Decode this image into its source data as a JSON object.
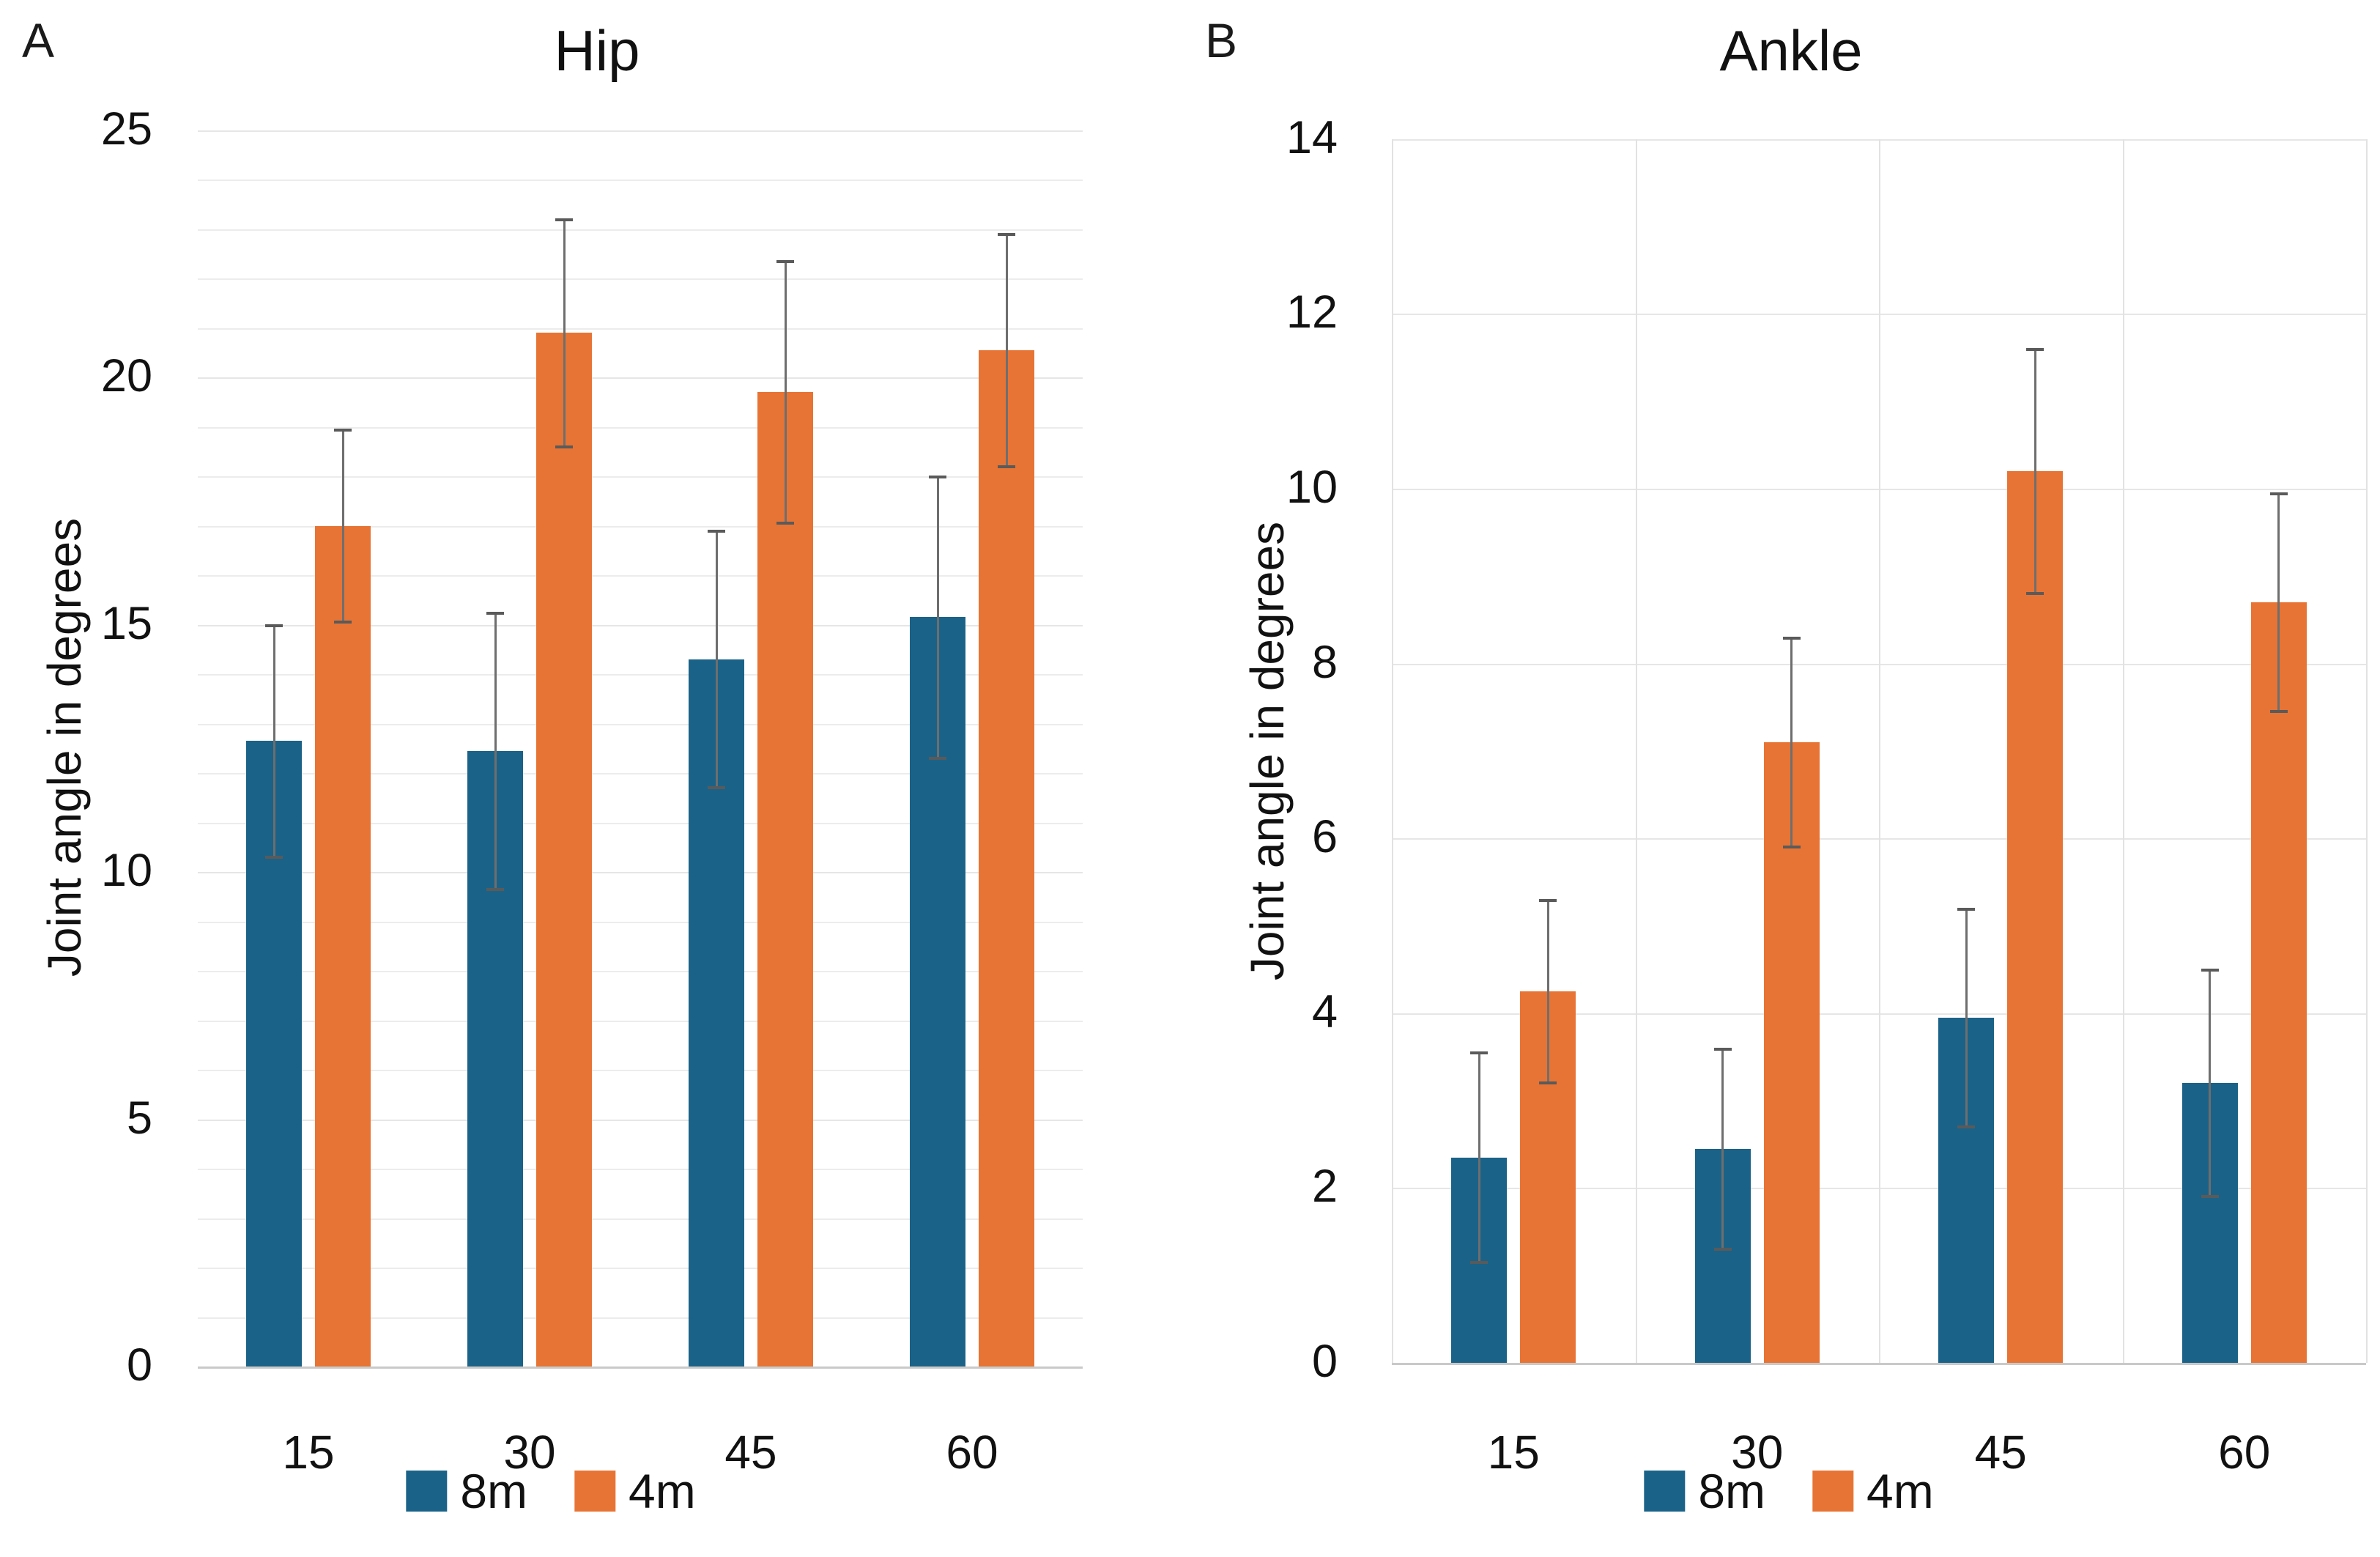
{
  "figure": {
    "background": "#ffffff",
    "series_colors": {
      "8m": "#1a6288",
      "4m": "#e77434"
    },
    "error_bar_color": "#6e6e6e"
  },
  "chart_data": [
    {
      "panel_label": "A",
      "type": "bar",
      "title": "Hip",
      "ylabel": "Joint angle in degrees",
      "xlabel": "",
      "categories": [
        "15",
        "30",
        "45",
        "60"
      ],
      "ylim": [
        0,
        25
      ],
      "ytick_step": 5,
      "grid_step": 1,
      "vertical_group_lines": false,
      "legend_position": "bottom",
      "series": [
        {
          "name": "8m",
          "color": "#1a6288",
          "values": [
            12.65,
            12.45,
            14.3,
            15.15
          ],
          "errors": [
            2.35,
            2.8,
            2.6,
            2.85
          ]
        },
        {
          "name": "4m",
          "color": "#e77434",
          "values": [
            17.0,
            20.9,
            19.7,
            20.55
          ],
          "errors": [
            1.95,
            2.3,
            2.65,
            2.35
          ]
        }
      ]
    },
    {
      "panel_label": "B",
      "type": "bar",
      "title": "Ankle",
      "ylabel": "Joint angle in degrees",
      "xlabel": "",
      "categories": [
        "15",
        "30",
        "45",
        "60"
      ],
      "ylim": [
        0,
        14
      ],
      "ytick_step": 2,
      "grid_step": 2,
      "vertical_group_lines": true,
      "legend_position": "bottom",
      "series": [
        {
          "name": "8m",
          "color": "#1a6288",
          "values": [
            2.35,
            2.45,
            3.95,
            3.2
          ],
          "errors": [
            1.2,
            1.15,
            1.25,
            1.3
          ]
        },
        {
          "name": "4m",
          "color": "#e77434",
          "values": [
            4.25,
            7.1,
            10.2,
            8.7
          ],
          "errors": [
            1.05,
            1.2,
            1.4,
            1.25
          ]
        }
      ]
    }
  ]
}
